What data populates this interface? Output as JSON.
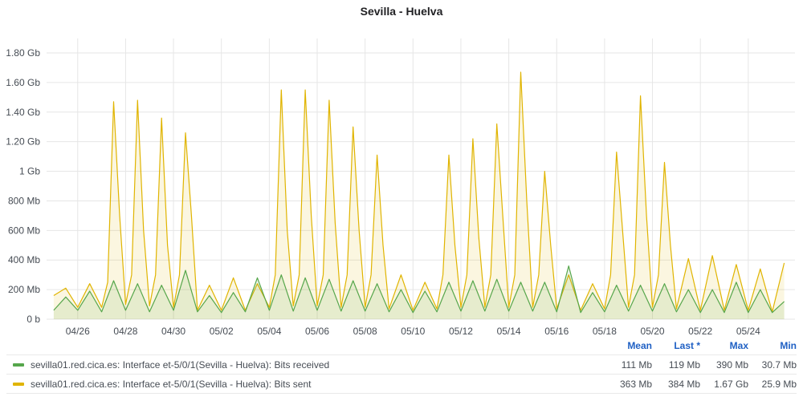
{
  "panel": {
    "title": "Sevilla - Huelva"
  },
  "legend": {
    "headers": {
      "mean": "Mean",
      "last": "Last *",
      "max": "Max",
      "min": "Min"
    },
    "rows": [
      {
        "name": "sevilla01.red.cica.es: Interface et-5/0/1(Sevilla - Huelva): Bits received",
        "color": "#56a64b",
        "mean": "111 Mb",
        "last": "119 Mb",
        "max": "390 Mb",
        "min": "30.7 Mb"
      },
      {
        "name": "sevilla01.red.cica.es: Interface et-5/0/1(Sevilla - Huelva): Bits sent",
        "color": "#e0b400",
        "mean": "363 Mb",
        "last": "384 Mb",
        "max": "1.67 Gb",
        "min": "25.9 Mb"
      }
    ]
  },
  "chart_data": {
    "type": "area",
    "title": "Sevilla - Huelva",
    "x_unit": "date (days)",
    "y_unit": "Mb",
    "x_range": [
      "04/25",
      "05/25"
    ],
    "ylim": [
      0,
      1800
    ],
    "y_ticks": [
      {
        "value": 0,
        "label": "0 b"
      },
      {
        "value": 200,
        "label": "200 Mb"
      },
      {
        "value": 400,
        "label": "400 Mb"
      },
      {
        "value": 600,
        "label": "600 Mb"
      },
      {
        "value": 800,
        "label": "800 Mb"
      },
      {
        "value": 1000,
        "label": "1 Gb"
      },
      {
        "value": 1200,
        "label": "1.20 Gb"
      },
      {
        "value": 1400,
        "label": "1.40 Gb"
      },
      {
        "value": 1600,
        "label": "1.60 Gb"
      },
      {
        "value": 1800,
        "label": "1.80 Gb"
      }
    ],
    "x_ticks": [
      "04/26",
      "04/28",
      "04/30",
      "05/02",
      "05/04",
      "05/06",
      "05/08",
      "05/10",
      "05/12",
      "05/14",
      "05/16",
      "05/18",
      "05/20",
      "05/22",
      "05/24"
    ],
    "grid": true,
    "legend": "bottom",
    "series": [
      {
        "name": "sevilla01.red.cica.es: Interface et-5/0/1(Sevilla - Huelva): Bits received",
        "color": "#56a64b",
        "points": [
          [
            "04/25 00:00",
            60
          ],
          [
            "04/25 12:00",
            150
          ],
          [
            "04/26 00:00",
            60
          ],
          [
            "04/26 12:00",
            190
          ],
          [
            "04/27 00:00",
            50
          ],
          [
            "04/27 12:00",
            260
          ],
          [
            "04/28 00:00",
            60
          ],
          [
            "04/28 12:00",
            240
          ],
          [
            "04/29 00:00",
            50
          ],
          [
            "04/29 12:00",
            230
          ],
          [
            "04/30 00:00",
            60
          ],
          [
            "04/30 12:00",
            330
          ],
          [
            "05/01 00:00",
            50
          ],
          [
            "05/01 12:00",
            160
          ],
          [
            "05/02 00:00",
            45
          ],
          [
            "05/02 12:00",
            180
          ],
          [
            "05/03 00:00",
            50
          ],
          [
            "05/03 12:00",
            280
          ],
          [
            "05/04 00:00",
            60
          ],
          [
            "05/04 12:00",
            300
          ],
          [
            "05/05 00:00",
            55
          ],
          [
            "05/05 12:00",
            280
          ],
          [
            "05/06 00:00",
            60
          ],
          [
            "05/06 12:00",
            270
          ],
          [
            "05/07 00:00",
            55
          ],
          [
            "05/07 12:00",
            260
          ],
          [
            "05/08 00:00",
            55
          ],
          [
            "05/08 12:00",
            240
          ],
          [
            "05/09 00:00",
            50
          ],
          [
            "05/09 12:00",
            200
          ],
          [
            "05/10 00:00",
            45
          ],
          [
            "05/10 12:00",
            190
          ],
          [
            "05/11 00:00",
            50
          ],
          [
            "05/11 12:00",
            250
          ],
          [
            "05/12 00:00",
            55
          ],
          [
            "05/12 12:00",
            260
          ],
          [
            "05/13 00:00",
            55
          ],
          [
            "05/13 12:00",
            270
          ],
          [
            "05/14 00:00",
            55
          ],
          [
            "05/14 12:00",
            250
          ],
          [
            "05/15 00:00",
            55
          ],
          [
            "05/15 12:00",
            250
          ],
          [
            "05/16 00:00",
            50
          ],
          [
            "05/16 12:00",
            360
          ],
          [
            "05/17 00:00",
            45
          ],
          [
            "05/17 12:00",
            180
          ],
          [
            "05/18 00:00",
            50
          ],
          [
            "05/18 12:00",
            230
          ],
          [
            "05/19 00:00",
            55
          ],
          [
            "05/19 12:00",
            230
          ],
          [
            "05/20 00:00",
            55
          ],
          [
            "05/20 12:00",
            240
          ],
          [
            "05/21 00:00",
            50
          ],
          [
            "05/21 12:00",
            200
          ],
          [
            "05/22 00:00",
            45
          ],
          [
            "05/22 12:00",
            200
          ],
          [
            "05/23 00:00",
            45
          ],
          [
            "05/23 12:00",
            250
          ],
          [
            "05/24 00:00",
            45
          ],
          [
            "05/24 12:00",
            200
          ],
          [
            "05/25 00:00",
            45
          ],
          [
            "05/25 12:00",
            120
          ]
        ]
      },
      {
        "name": "sevilla01.red.cica.es: Interface et-5/0/1(Sevilla - Huelva): Bits sent",
        "color": "#e0b400",
        "points": [
          [
            "04/25 00:00",
            160
          ],
          [
            "04/25 12:00",
            210
          ],
          [
            "04/26 00:00",
            80
          ],
          [
            "04/26 12:00",
            240
          ],
          [
            "04/27 00:00",
            80
          ],
          [
            "04/27 06:00",
            250
          ],
          [
            "04/27 12:00",
            1470
          ],
          [
            "04/27 18:00",
            700
          ],
          [
            "04/28 00:00",
            100
          ],
          [
            "04/28 06:00",
            300
          ],
          [
            "04/28 12:00",
            1480
          ],
          [
            "04/28 18:00",
            600
          ],
          [
            "04/29 00:00",
            90
          ],
          [
            "04/29 06:00",
            300
          ],
          [
            "04/29 12:00",
            1360
          ],
          [
            "04/29 18:00",
            500
          ],
          [
            "04/30 00:00",
            80
          ],
          [
            "04/30 06:00",
            300
          ],
          [
            "04/30 12:00",
            1260
          ],
          [
            "04/30 18:00",
            700
          ],
          [
            "05/01 00:00",
            60
          ],
          [
            "05/01 12:00",
            230
          ],
          [
            "05/02 00:00",
            60
          ],
          [
            "05/02 12:00",
            280
          ],
          [
            "05/03 00:00",
            60
          ],
          [
            "05/03 12:00",
            240
          ],
          [
            "05/04 00:00",
            80
          ],
          [
            "05/04 06:00",
            300
          ],
          [
            "05/04 12:00",
            1550
          ],
          [
            "05/04 18:00",
            600
          ],
          [
            "05/05 00:00",
            90
          ],
          [
            "05/05 06:00",
            300
          ],
          [
            "05/05 12:00",
            1550
          ],
          [
            "05/05 18:00",
            700
          ],
          [
            "05/06 00:00",
            90
          ],
          [
            "05/06 06:00",
            300
          ],
          [
            "05/06 12:00",
            1480
          ],
          [
            "05/06 18:00",
            650
          ],
          [
            "05/07 00:00",
            80
          ],
          [
            "05/07 06:00",
            300
          ],
          [
            "05/07 12:00",
            1300
          ],
          [
            "05/07 18:00",
            600
          ],
          [
            "05/08 00:00",
            80
          ],
          [
            "05/08 06:00",
            300
          ],
          [
            "05/08 12:00",
            1110
          ],
          [
            "05/08 18:00",
            500
          ],
          [
            "05/09 00:00",
            70
          ],
          [
            "05/09 12:00",
            300
          ],
          [
            "05/10 00:00",
            60
          ],
          [
            "05/10 12:00",
            250
          ],
          [
            "05/11 00:00",
            70
          ],
          [
            "05/11 06:00",
            300
          ],
          [
            "05/11 12:00",
            1110
          ],
          [
            "05/11 18:00",
            500
          ],
          [
            "05/12 00:00",
            80
          ],
          [
            "05/12 06:00",
            300
          ],
          [
            "05/12 12:00",
            1220
          ],
          [
            "05/12 18:00",
            550
          ],
          [
            "05/13 00:00",
            80
          ],
          [
            "05/13 06:00",
            300
          ],
          [
            "05/13 12:00",
            1320
          ],
          [
            "05/13 18:00",
            700
          ],
          [
            "05/14 00:00",
            80
          ],
          [
            "05/14 06:00",
            300
          ],
          [
            "05/14 12:00",
            1670
          ],
          [
            "05/14 18:00",
            800
          ],
          [
            "05/15 00:00",
            80
          ],
          [
            "05/15 06:00",
            300
          ],
          [
            "05/15 12:00",
            1000
          ],
          [
            "05/15 18:00",
            500
          ],
          [
            "05/16 00:00",
            70
          ],
          [
            "05/16 12:00",
            300
          ],
          [
            "05/17 00:00",
            60
          ],
          [
            "05/17 12:00",
            240
          ],
          [
            "05/18 00:00",
            70
          ],
          [
            "05/18 06:00",
            300
          ],
          [
            "05/18 12:00",
            1130
          ],
          [
            "05/18 18:00",
            600
          ],
          [
            "05/19 00:00",
            80
          ],
          [
            "05/19 06:00",
            300
          ],
          [
            "05/19 12:00",
            1510
          ],
          [
            "05/19 18:00",
            700
          ],
          [
            "05/20 00:00",
            80
          ],
          [
            "05/20 06:00",
            300
          ],
          [
            "05/20 12:00",
            1060
          ],
          [
            "05/20 18:00",
            500
          ],
          [
            "05/21 00:00",
            70
          ],
          [
            "05/21 12:00",
            410
          ],
          [
            "05/22 00:00",
            60
          ],
          [
            "05/22 12:00",
            430
          ],
          [
            "05/23 00:00",
            60
          ],
          [
            "05/23 12:00",
            370
          ],
          [
            "05/24 00:00",
            60
          ],
          [
            "05/24 12:00",
            340
          ],
          [
            "05/25 00:00",
            50
          ],
          [
            "05/25 12:00",
            380
          ]
        ]
      }
    ]
  }
}
